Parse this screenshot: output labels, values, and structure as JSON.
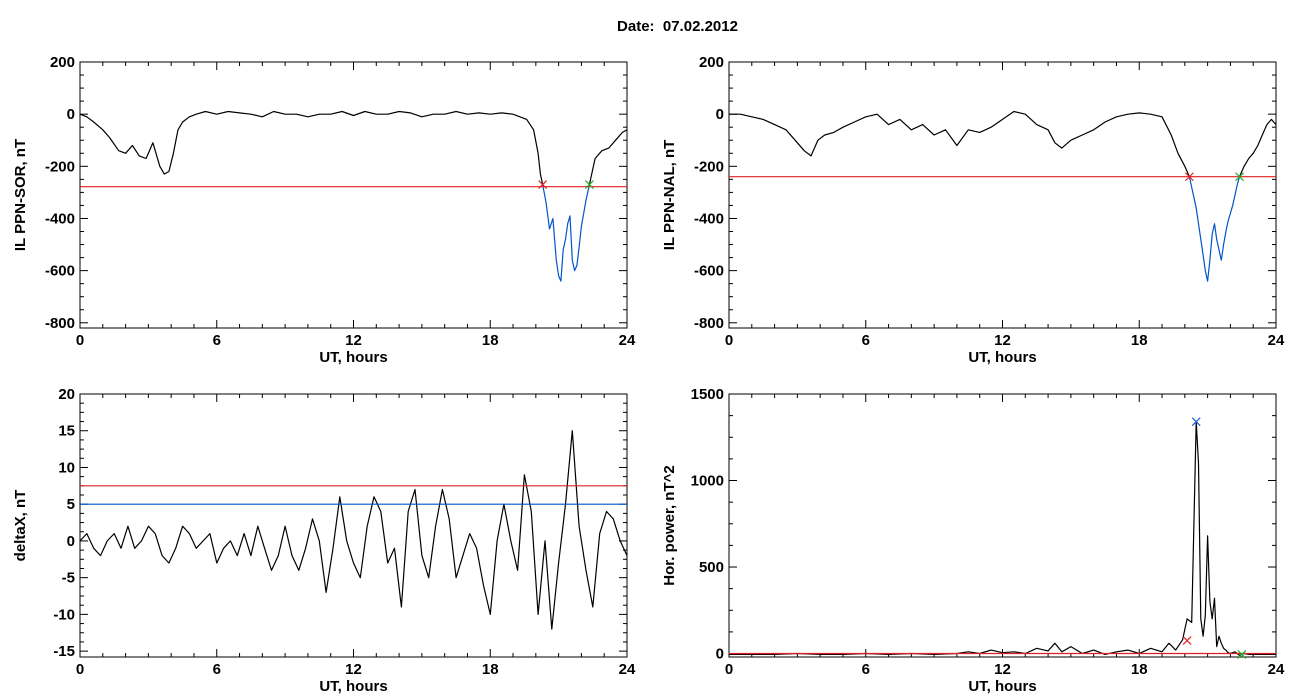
{
  "figure_title": "Date:  07.02.2012",
  "chart_data": [
    {
      "type": "line",
      "xlabel": "UT, hours",
      "ylabel": "IL PPN-SOR, nT",
      "xlim": [
        0,
        24
      ],
      "ylim": [
        -820,
        200
      ],
      "xticks": [
        0,
        6,
        12,
        18,
        24
      ],
      "yticks": [
        200,
        0,
        -200,
        -400,
        -600,
        -800
      ],
      "series": [
        {
          "color": "#000000",
          "x": [
            0,
            0.3,
            0.6,
            1,
            1.3,
            1.7,
            2,
            2.3,
            2.6,
            2.9,
            3.2,
            3.5,
            3.7,
            3.9,
            4.1,
            4.3,
            4.5,
            4.8,
            5.1,
            5.5,
            6,
            6.5,
            7,
            7.5,
            8,
            8.5,
            9,
            9.5,
            10,
            10.5,
            11,
            11.5,
            12,
            12.5,
            13,
            13.5,
            14,
            14.5,
            15,
            15.5,
            16,
            16.5,
            17,
            17.5,
            18,
            18.5,
            19,
            19.3,
            19.6,
            19.9,
            20.1,
            20.2,
            20.3
          ],
          "y": [
            0,
            -10,
            -30,
            -60,
            -90,
            -140,
            -150,
            -120,
            -160,
            -170,
            -110,
            -200,
            -230,
            -220,
            -150,
            -60,
            -30,
            -10,
            0,
            10,
            0,
            10,
            5,
            0,
            -10,
            10,
            0,
            0,
            -10,
            0,
            0,
            10,
            -5,
            10,
            0,
            0,
            10,
            5,
            -10,
            0,
            0,
            10,
            0,
            5,
            0,
            5,
            0,
            -10,
            -20,
            -60,
            -150,
            -230,
            -270
          ]
        },
        {
          "color": "#0055cc",
          "x": [
            20.3,
            20.45,
            20.6,
            20.75,
            20.9,
            21,
            21.1,
            21.2,
            21.3,
            21.4,
            21.5,
            21.6,
            21.7,
            21.8,
            21.9,
            22,
            22.1,
            22.2,
            22.35
          ],
          "y": [
            -270,
            -340,
            -440,
            -400,
            -560,
            -620,
            -640,
            -520,
            -480,
            -420,
            -390,
            -560,
            -600,
            -580,
            -510,
            -430,
            -380,
            -330,
            -270
          ]
        },
        {
          "color": "#000000",
          "x": [
            22.35,
            22.6,
            22.9,
            23.2,
            23.5,
            23.8,
            24
          ],
          "y": [
            -270,
            -170,
            -140,
            -130,
            -100,
            -70,
            -60
          ]
        },
        {
          "color": "#e02020",
          "x": [
            0,
            24
          ],
          "y": [
            -278,
            -278
          ]
        }
      ],
      "markers": [
        {
          "x": 20.3,
          "y": -270,
          "color": "#e02020"
        },
        {
          "x": 22.35,
          "y": -270,
          "color": "#22aa22"
        }
      ]
    },
    {
      "type": "line",
      "xlabel": "UT, hours",
      "ylabel": "IL PPN-NAL, nT",
      "xlim": [
        0,
        24
      ],
      "ylim": [
        -820,
        200
      ],
      "xticks": [
        0,
        6,
        12,
        18,
        24
      ],
      "yticks": [
        200,
        0,
        -200,
        -400,
        -600,
        -800
      ],
      "series": [
        {
          "color": "#000000",
          "x": [
            0,
            0.5,
            1,
            1.5,
            2,
            2.5,
            3,
            3.3,
            3.6,
            3.9,
            4.2,
            4.6,
            5,
            5.5,
            6,
            6.5,
            7,
            7.5,
            8,
            8.5,
            9,
            9.5,
            10,
            10.5,
            11,
            11.5,
            12,
            12.5,
            13,
            13.5,
            14,
            14.3,
            14.6,
            15,
            15.5,
            16,
            16.5,
            17,
            17.5,
            18,
            18.5,
            19,
            19.4,
            19.7,
            20,
            20.2
          ],
          "y": [
            0,
            0,
            -10,
            -20,
            -40,
            -60,
            -110,
            -140,
            -160,
            -100,
            -80,
            -70,
            -50,
            -30,
            -10,
            0,
            -40,
            -20,
            -60,
            -40,
            -80,
            -60,
            -120,
            -60,
            -70,
            -50,
            -20,
            10,
            0,
            -40,
            -60,
            -110,
            -130,
            -100,
            -80,
            -60,
            -30,
            -10,
            0,
            5,
            0,
            -10,
            -80,
            -150,
            -200,
            -240
          ]
        },
        {
          "color": "#0055cc",
          "x": [
            20.2,
            20.35,
            20.5,
            20.6,
            20.7,
            20.8,
            20.9,
            21,
            21.1,
            21.2,
            21.3,
            21.4,
            21.5,
            21.6,
            21.7,
            21.8,
            21.9,
            22,
            22.1,
            22.2,
            22.3,
            22.4
          ],
          "y": [
            -240,
            -300,
            -360,
            -420,
            -480,
            -540,
            -600,
            -640,
            -560,
            -460,
            -420,
            -480,
            -520,
            -560,
            -500,
            -450,
            -410,
            -380,
            -350,
            -310,
            -270,
            -240
          ]
        },
        {
          "color": "#000000",
          "x": [
            22.4,
            22.6,
            22.8,
            23,
            23.2,
            23.4,
            23.6,
            23.8,
            24
          ],
          "y": [
            -240,
            -200,
            -170,
            -150,
            -120,
            -80,
            -40,
            -20,
            -40
          ]
        },
        {
          "color": "#e02020",
          "x": [
            0,
            24
          ],
          "y": [
            -240,
            -240
          ]
        }
      ],
      "markers": [
        {
          "x": 20.2,
          "y": -240,
          "color": "#e02020"
        },
        {
          "x": 22.4,
          "y": -240,
          "color": "#22aa22"
        }
      ]
    },
    {
      "type": "line",
      "xlabel": "UT, hours",
      "ylabel": "deltaX, nT",
      "xlim": [
        0,
        24
      ],
      "ylim": [
        -15.8,
        20
      ],
      "xticks": [
        0,
        6,
        12,
        18,
        24
      ],
      "yticks": [
        20,
        15,
        10,
        5,
        0,
        -5,
        -10,
        -15
      ],
      "series": [
        {
          "color": "#000000",
          "x": [
            0,
            0.3,
            0.6,
            0.9,
            1.2,
            1.5,
            1.8,
            2.1,
            2.4,
            2.7,
            3,
            3.3,
            3.6,
            3.9,
            4.2,
            4.5,
            4.8,
            5.1,
            5.4,
            5.7,
            6,
            6.3,
            6.6,
            6.9,
            7.2,
            7.5,
            7.8,
            8.1,
            8.4,
            8.7,
            9,
            9.3,
            9.6,
            9.9,
            10.2,
            10.5,
            10.8,
            11.1,
            11.4,
            11.7,
            12,
            12.3,
            12.6,
            12.9,
            13.2,
            13.5,
            13.8,
            14.1,
            14.4,
            14.7,
            15,
            15.3,
            15.6,
            15.9,
            16.2,
            16.5,
            16.8,
            17.1,
            17.4,
            17.7,
            18,
            18.3,
            18.6,
            18.9,
            19.2,
            19.5,
            19.8,
            20.1,
            20.4,
            20.7,
            21,
            21.3,
            21.6,
            21.9,
            22.2,
            22.5,
            22.8,
            23.1,
            23.4,
            23.7,
            24
          ],
          "y": [
            0,
            1,
            -1,
            -2,
            0,
            1,
            -1,
            2,
            -1,
            0,
            2,
            1,
            -2,
            -3,
            -1,
            2,
            1,
            -1,
            0,
            1,
            -3,
            -1,
            0,
            -2,
            1,
            -2,
            2,
            -1,
            -4,
            -2,
            2,
            -2,
            -4,
            -1,
            3,
            0,
            -7,
            -1,
            6,
            0,
            -3,
            -5,
            2,
            6,
            4,
            -3,
            -1,
            -9,
            4,
            7,
            -2,
            -5,
            2,
            7,
            3,
            -5,
            -2,
            1,
            -1,
            -6,
            -10,
            0,
            5,
            0,
            -4,
            9,
            4,
            -10,
            0,
            -12,
            -3,
            5,
            15,
            2,
            -4,
            -9,
            1,
            4,
            3,
            0,
            -2
          ]
        },
        {
          "color": "#e02020",
          "x": [
            0,
            24
          ],
          "y": [
            7.5,
            7.5
          ]
        },
        {
          "color": "#0055cc",
          "x": [
            0,
            24
          ],
          "y": [
            5.0,
            5.0
          ]
        }
      ]
    },
    {
      "type": "line",
      "xlabel": "UT, hours",
      "ylabel": "Hor. power, nT^2",
      "xlim": [
        0,
        24
      ],
      "ylim": [
        -20,
        1500
      ],
      "xticks": [
        0,
        6,
        12,
        18,
        24
      ],
      "yticks": [
        1500,
        1000,
        500,
        0
      ],
      "series": [
        {
          "color": "#000000",
          "x": [
            0,
            1,
            2,
            3,
            4,
            5,
            6,
            7,
            8,
            9,
            10,
            10.5,
            11,
            11.5,
            12,
            12.5,
            13,
            13.5,
            14,
            14.3,
            14.6,
            15,
            15.5,
            16,
            16.5,
            17,
            17.5,
            18,
            18.5,
            19,
            19.3,
            19.6,
            19.9,
            20.1,
            20.3,
            20.5,
            20.6,
            20.7,
            20.8,
            20.9,
            21,
            21.1,
            21.2,
            21.3,
            21.4,
            21.5,
            21.6,
            21.7,
            21.8,
            21.9,
            22,
            22.2,
            22.4,
            22.6,
            22.8,
            23,
            23.5,
            24
          ],
          "y": [
            -5,
            -5,
            -5,
            0,
            -5,
            -5,
            0,
            -5,
            0,
            -5,
            0,
            10,
            0,
            20,
            5,
            10,
            0,
            30,
            15,
            60,
            10,
            40,
            0,
            20,
            -5,
            10,
            20,
            0,
            30,
            10,
            60,
            20,
            80,
            200,
            180,
            1340,
            1100,
            200,
            100,
            220,
            680,
            300,
            200,
            320,
            40,
            100,
            60,
            30,
            20,
            5,
            0,
            10,
            -10,
            0,
            -5,
            -5,
            -5,
            -5
          ]
        },
        {
          "color": "#e02020",
          "x": [
            0,
            24
          ],
          "y": [
            0,
            0
          ]
        }
      ],
      "markers": [
        {
          "x": 20.5,
          "y": 1340,
          "color": "#1f5fcf"
        },
        {
          "x": 20.1,
          "y": 75,
          "color": "#e02020"
        },
        {
          "x": 22.5,
          "y": -5,
          "color": "#22aa22"
        }
      ]
    }
  ]
}
